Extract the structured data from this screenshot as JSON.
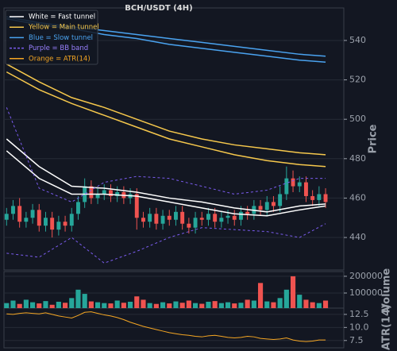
{
  "chart_data": [
    {
      "type": "candlestick",
      "title": "BCH/USDT (4H)",
      "ylabel": "Price",
      "ylim": [
        423.5,
        556.5
      ],
      "yticks": [
        440,
        460,
        480,
        500,
        520,
        540
      ],
      "xlim": [
        -0.4,
        51.8
      ],
      "grid": true,
      "up_color": "#26a69a",
      "down_color": "#ef5350",
      "open": [
        449,
        452,
        456,
        448,
        450,
        454,
        446,
        450,
        444,
        448,
        446,
        452,
        458,
        466,
        460,
        462,
        464,
        461,
        463,
        460,
        462,
        450,
        448,
        452,
        447,
        451,
        449,
        453,
        447,
        445,
        450,
        449,
        452,
        448,
        450,
        451,
        449,
        453,
        452,
        456,
        454,
        458,
        456,
        462,
        470,
        466,
        468,
        461,
        459,
        462
      ],
      "high": [
        455,
        459,
        460,
        453,
        457,
        457,
        453,
        453,
        451,
        451,
        455,
        461,
        470,
        469,
        465,
        467,
        467,
        466,
        466,
        465,
        465,
        453,
        455,
        455,
        454,
        454,
        456,
        456,
        450,
        453,
        453,
        455,
        455,
        453,
        454,
        454,
        456,
        456,
        459,
        459,
        461,
        461,
        466,
        476,
        474,
        471,
        471,
        464,
        466,
        465
      ],
      "low": [
        446,
        449,
        445,
        445,
        447,
        443,
        443,
        440,
        441,
        443,
        443,
        449,
        455,
        457,
        457,
        459,
        458,
        458,
        457,
        457,
        444,
        445,
        445,
        444,
        444,
        446,
        446,
        444,
        442,
        442,
        446,
        446,
        445,
        445,
        447,
        446,
        446,
        449,
        449,
        451,
        451,
        453,
        453,
        459,
        463,
        463,
        458,
        456,
        456,
        455
      ],
      "close": [
        452,
        456,
        448,
        450,
        454,
        446,
        450,
        444,
        448,
        446,
        452,
        458,
        466,
        460,
        462,
        464,
        461,
        463,
        460,
        462,
        450,
        448,
        452,
        447,
        451,
        449,
        453,
        447,
        445,
        450,
        449,
        452,
        448,
        450,
        451,
        449,
        453,
        452,
        456,
        454,
        458,
        456,
        462,
        470,
        466,
        468,
        461,
        459,
        462,
        458
      ],
      "line_x": [
        0,
        5,
        10,
        15,
        20,
        25,
        30,
        35,
        40,
        45,
        49
      ],
      "lines": [
        {
          "color": "#ffffff",
          "values": [
            490,
            476,
            466,
            465,
            463,
            460,
            458,
            455,
            453,
            456,
            457
          ]
        },
        {
          "color": "#ffffff",
          "values": [
            484,
            470,
            462,
            462,
            461,
            458,
            455,
            452,
            451,
            454,
            456
          ]
        },
        {
          "color": "#f6c84c",
          "values": [
            528,
            519,
            511,
            506,
            500,
            494,
            490,
            487,
            485,
            483,
            482
          ]
        },
        {
          "color": "#f6c84c",
          "values": [
            524,
            515,
            508,
            502,
            496,
            490,
            486,
            482,
            479,
            477,
            476
          ]
        },
        {
          "color": "#4aa3f0",
          "values": [
            552,
            549,
            547,
            545,
            543,
            541,
            539,
            537,
            535,
            533,
            532
          ]
        },
        {
          "color": "#4aa3f0",
          "values": [
            551,
            548,
            546,
            543,
            541,
            538,
            536,
            534,
            532,
            530,
            529
          ]
        },
        {
          "color": "#7b5cf0",
          "dash": true,
          "values": [
            506,
            465,
            458,
            468,
            471,
            470,
            466,
            462,
            464,
            470,
            470
          ]
        },
        {
          "color": "#7b5cf0",
          "dash": true,
          "values": [
            432,
            430,
            440,
            427,
            433,
            440,
            445,
            444,
            443,
            440,
            447
          ]
        }
      ],
      "legend": [
        {
          "label": "White = Fast tunnel",
          "color": "#ffffff"
        },
        {
          "label": "Yellow = Main tunnel",
          "color": "#f6c84c"
        },
        {
          "label": "Blue = Slow tunnel",
          "color": "#4aa3f0"
        },
        {
          "label": "Purple = BB band",
          "color": "#7b5cf0",
          "dash": true
        },
        {
          "label": "Orange = ATR(14)",
          "color": "#f5a623"
        }
      ]
    },
    {
      "type": "bar",
      "ylabel": "Volume",
      "ylim": [
        10000,
        228000
      ],
      "yticks": [
        100000,
        200000
      ],
      "xlim": [
        -0.4,
        51.8
      ],
      "values": [
        40000,
        55000,
        35000,
        60000,
        45000,
        38000,
        52000,
        30000,
        48000,
        42000,
        70000,
        120000,
        95000,
        50000,
        45000,
        40000,
        38000,
        55000,
        42000,
        48000,
        80000,
        60000,
        40000,
        35000,
        45000,
        38000,
        50000,
        42000,
        55000,
        40000,
        36000,
        48000,
        52000,
        40000,
        45000,
        38000,
        42000,
        60000,
        55000,
        160000,
        50000,
        45000,
        70000,
        120000,
        200000,
        90000,
        60000,
        45000,
        40000,
        55000
      ]
    },
    {
      "type": "line",
      "ylabel": "ATR(14)",
      "ylim": [
        6.1,
        13.7
      ],
      "yticks": [
        7.5,
        {
          "value": 10,
          "label": "10.0"
        },
        12.5
      ],
      "xlim": [
        -0.4,
        51.8
      ],
      "color": "#f5a623",
      "values": [
        12.6,
        12.5,
        12.7,
        12.8,
        12.7,
        12.6,
        12.8,
        12.5,
        12.2,
        12.0,
        11.8,
        12.3,
        12.9,
        13.0,
        12.7,
        12.4,
        12.2,
        11.9,
        11.5,
        11.0,
        10.6,
        10.2,
        9.9,
        9.6,
        9.3,
        9.0,
        8.8,
        8.6,
        8.5,
        8.3,
        8.2,
        8.4,
        8.5,
        8.3,
        8.1,
        8.0,
        8.1,
        8.3,
        8.2,
        7.9,
        7.8,
        7.7,
        7.8,
        8.0,
        7.6,
        7.4,
        7.3,
        7.4,
        7.6,
        7.6
      ]
    }
  ]
}
